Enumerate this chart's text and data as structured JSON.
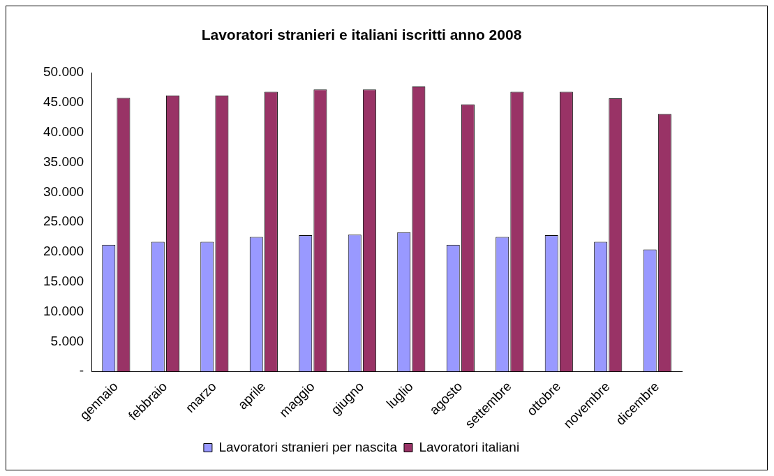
{
  "chart_data": {
    "type": "bar",
    "title": "Lavoratori stranieri e italiani iscritti anno 2008",
    "categories": [
      "gennaio",
      "febbraio",
      "marzo",
      "aprile",
      "maggio",
      "giugno",
      "luglio",
      "agosto",
      "settembre",
      "ottobre",
      "novembre",
      "dicembre"
    ],
    "series": [
      {
        "name": "Lavoratori stranieri per nascita",
        "color": "#9999ff",
        "values": [
          21200,
          21700,
          21700,
          22500,
          22800,
          22900,
          23300,
          21200,
          22500,
          22800,
          21700,
          20400
        ]
      },
      {
        "name": "Lavoratori italiani",
        "color": "#993366",
        "values": [
          45800,
          46200,
          46200,
          46800,
          47200,
          47200,
          47700,
          44700,
          46800,
          46800,
          45700,
          43100
        ]
      }
    ],
    "ylim": [
      0,
      50000
    ],
    "yticks": [
      {
        "value": 0,
        "label": "-"
      },
      {
        "value": 5000,
        "label": "5.000"
      },
      {
        "value": 10000,
        "label": "10.000"
      },
      {
        "value": 15000,
        "label": "15.000"
      },
      {
        "value": 20000,
        "label": "20.000"
      },
      {
        "value": 25000,
        "label": "25.000"
      },
      {
        "value": 30000,
        "label": "30.000"
      },
      {
        "value": 35000,
        "label": "35.000"
      },
      {
        "value": 40000,
        "label": "40.000"
      },
      {
        "value": 45000,
        "label": "45.000"
      },
      {
        "value": 50000,
        "label": "50.000"
      }
    ],
    "grid": false,
    "legend": "bottom"
  }
}
